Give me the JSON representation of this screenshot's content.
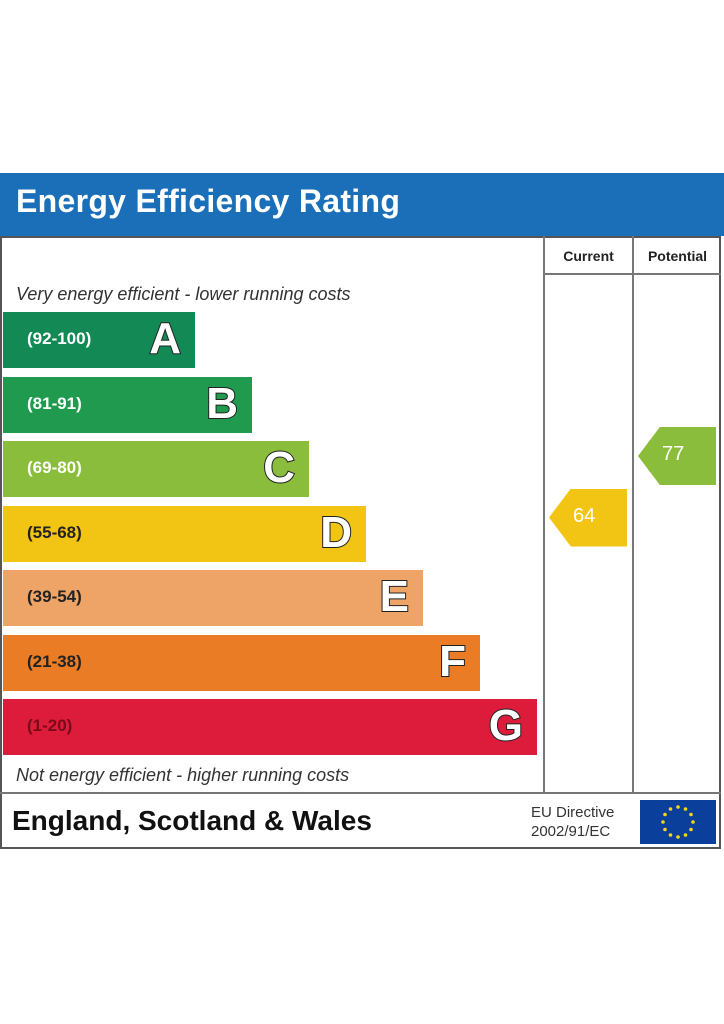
{
  "title": "Energy Efficiency Rating",
  "columns": {
    "current": "Current",
    "potential": "Potential"
  },
  "notes": {
    "top": "Very energy efficient - lower running costs",
    "bottom": "Not energy efficient - higher running costs"
  },
  "footer": {
    "region": "England, Scotland & Wales",
    "directive_line1": "EU Directive",
    "directive_line2": "2002/91/EC"
  },
  "chart_data": {
    "type": "bar",
    "categories": [
      "A",
      "B",
      "C",
      "D",
      "E",
      "F",
      "G"
    ],
    "bands": [
      {
        "letter": "A",
        "range": "(92-100)",
        "color": "#138a55",
        "min": 92,
        "max": 100
      },
      {
        "letter": "B",
        "range": "(81-91)",
        "color": "#1f9a4f",
        "min": 81,
        "max": 91
      },
      {
        "letter": "C",
        "range": "(69-80)",
        "color": "#8bbd3c",
        "min": 69,
        "max": 80
      },
      {
        "letter": "D",
        "range": "(55-68)",
        "color": "#f2c514",
        "min": 55,
        "max": 68
      },
      {
        "letter": "E",
        "range": "(39-54)",
        "color": "#eea466",
        "min": 39,
        "max": 54
      },
      {
        "letter": "F",
        "range": "(21-38)",
        "color": "#e97c24",
        "min": 21,
        "max": 38
      },
      {
        "letter": "G",
        "range": "(1-20)",
        "color": "#dc1c3a",
        "min": 1,
        "max": 20
      }
    ],
    "current": {
      "value": 64,
      "band": "D",
      "color": "#f2c514"
    },
    "potential": {
      "value": 77,
      "band": "C",
      "color": "#8bbd3c"
    }
  }
}
